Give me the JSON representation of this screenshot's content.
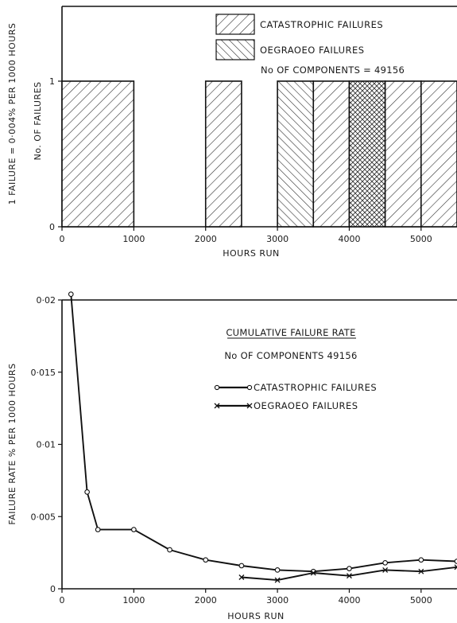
{
  "chart_data": [
    {
      "type": "bar",
      "x": [
        [
          0,
          1000
        ],
        [
          2000,
          2500
        ],
        [
          3000,
          3500
        ],
        [
          3500,
          4000
        ],
        [
          4000,
          4500
        ],
        [
          4500,
          5000
        ],
        [
          5000,
          5500
        ]
      ],
      "series": [
        {
          "name": "CATASTROPHIC FAILURES",
          "values": [
            1,
            1,
            0,
            1,
            0,
            1,
            1
          ]
        },
        {
          "name": "OEGRAOEO FAILURES",
          "values": [
            0,
            0,
            1,
            0,
            0,
            0,
            0
          ]
        },
        {
          "name": "CATASTROPHIC FAILURES + OEGRAOEO FAILURES",
          "values": [
            0,
            0,
            0,
            0,
            1,
            0,
            0
          ]
        }
      ],
      "xlabel": "HOURS RUN",
      "ylabel": "No. OF FAILURES",
      "ylabel_secondary": "1 FAILURE = 0·004% PER 1000 HOURS",
      "annotation": "No OF COMPONENTS = 49156",
      "xlim": [
        0,
        5500
      ],
      "ylim": [
        0,
        1
      ],
      "xticks": [
        "0",
        "1000",
        "2000",
        "3000",
        "4000",
        "5000"
      ],
      "yticks": [
        "0",
        "1"
      ],
      "legend_position": "top-center"
    },
    {
      "type": "line",
      "title": "CUMULATIVE FAILURE RATE",
      "subtitle": "No OF COMPONENTS  49156",
      "xlabel": "HOURS RUN",
      "ylabel": "FAILURE RATE % PER 1000 HOURS",
      "xlim": [
        0,
        5500
      ],
      "ylim": [
        0,
        0.02
      ],
      "xticks": [
        "0",
        "1000",
        "2000",
        "3000",
        "4000",
        "5000"
      ],
      "yticks": [
        "0",
        "0·005",
        "0·01",
        "0·015",
        "0·02"
      ],
      "legend_position": "center-right",
      "series": [
        {
          "name": "CATASTROPHIC FAILURES",
          "marker": "circle",
          "x": [
            125,
            350,
            500,
            1000,
            1500,
            2000,
            2500,
            3000,
            3500,
            4000,
            4500,
            5000,
            5500
          ],
          "values": [
            0.0204,
            0.0067,
            0.0041,
            0.0041,
            0.0027,
            0.002,
            0.0016,
            0.0013,
            0.0012,
            0.0014,
            0.0018,
            0.002,
            0.0019
          ]
        },
        {
          "name": "OEGRAOEO FAILURES",
          "marker": "x",
          "x": [
            2500,
            3000,
            3500,
            4000,
            4500,
            5000,
            5500
          ],
          "values": [
            0.0008,
            0.0006,
            0.0011,
            0.0009,
            0.0013,
            0.0012,
            0.0015
          ]
        }
      ]
    }
  ]
}
